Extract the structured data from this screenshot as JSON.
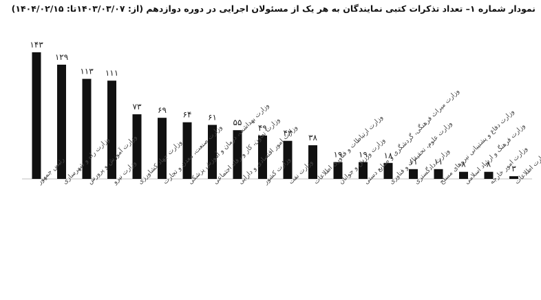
{
  "page": {
    "title": "نمودار شماره ۱– تعداد تذکرات کتبی نمایندگان به هر یک از مسئولان اجرایی در دوره دوازدهم (از: ۱۴۰۳/۰۳/۰۷تا: ۱۴۰۴/۰۲/۱۵)"
  },
  "chart_data": {
    "type": "bar",
    "title": "نمودار شماره ۱– تعداد تذکرات کتبی نمایندگان به هر یک از مسئولان اجرایی در دوره دوازدهم (از: ۱۴۰۳/۰۳/۰۷تا: ۱۴۰۴/۰۲/۱۵)",
    "xlabel": "",
    "ylabel": "",
    "bar_color": "#111111",
    "grid": false,
    "legend": "none",
    "ylim": [
      0,
      150
    ],
    "categories": [
      "رئیس جمهور",
      "وزارت راه و شهرسازی",
      "وزارت آموزش و پرورش",
      "وزارت نیرو",
      "وزارت جهاد کشاورزی",
      "وزارت صنعت، معدن و تجارت",
      "وزارت بهداشت، درمان و آموزش پزشکی",
      "وزارت تعاون، کار و رفاه اجتماعی",
      "وزارت امور اقتصادی و دارایی",
      "وزارت کشور",
      "وزارت نفت",
      "وزارت ارتباطات و فناوری اطلاعات",
      "وزارت ورزش و جوانان",
      "وزارت میراث فرهنگی، گردشگری و صنایع دستی",
      "وزارت علوم، تحقیقات و فناوری",
      "وزارت دادگستری",
      "وزارت دفاع و پشتیبانی نیروهای مسلح",
      "وزارت فرهنگ و ارشاد اسلامی",
      "وزارت امور خارجه",
      "وزارت اطلاعات"
    ],
    "values": [
      143,
      129,
      113,
      111,
      73,
      69,
      64,
      61,
      55,
      49,
      43,
      38,
      19,
      19,
      18,
      11,
      11,
      8,
      8,
      3
    ],
    "value_labels": [
      "۱۴۳",
      "۱۲۹",
      "۱۱۳",
      "۱۱۱",
      "۷۳",
      "۶۹",
      "۶۴",
      "۶۱",
      "۵۵",
      "۴۹",
      "۴۳",
      "۳۸",
      "۱۹",
      "۱۹",
      "۱۸",
      "۱۱",
      "۱۱",
      "۸",
      "۸",
      "۳"
    ]
  }
}
